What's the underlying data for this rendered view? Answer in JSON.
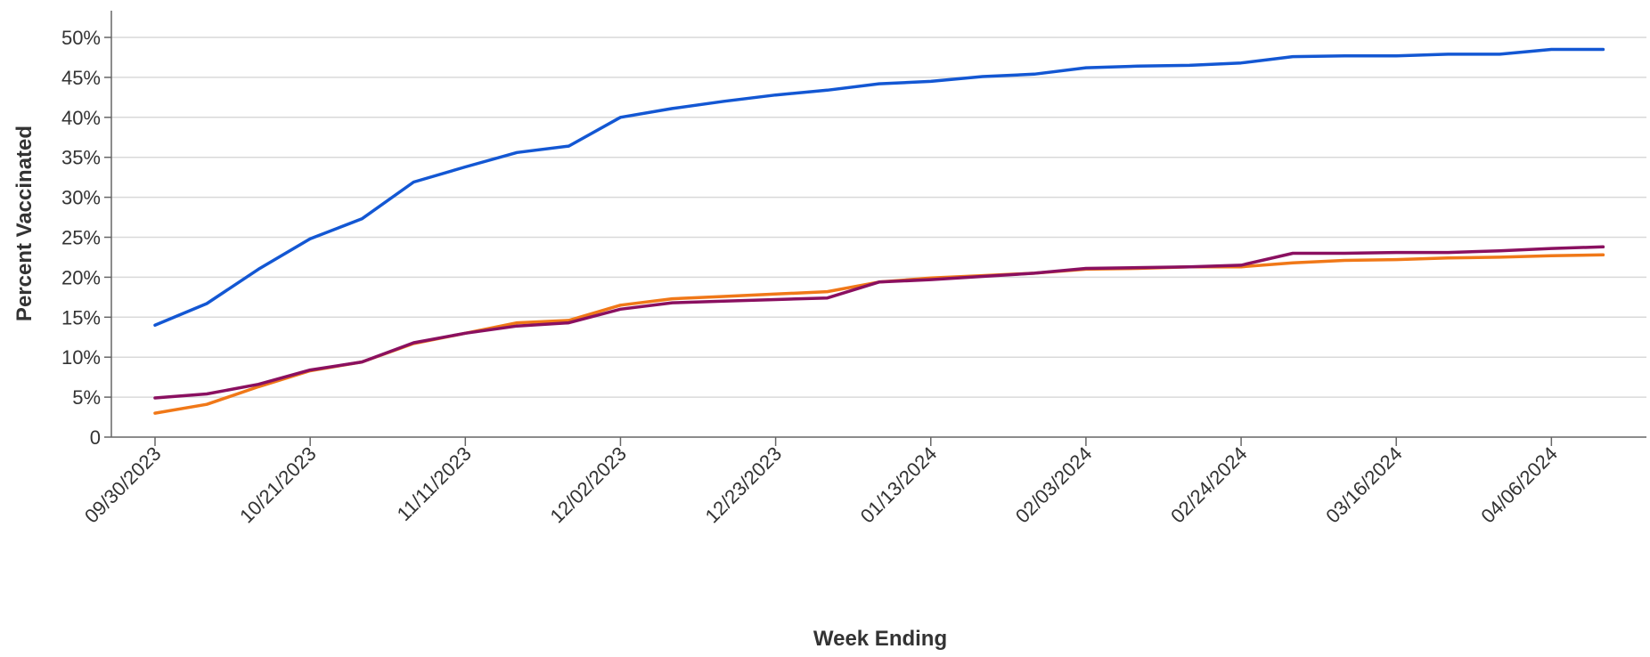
{
  "chart_data": {
    "type": "line",
    "title": "",
    "xlabel": "Week Ending",
    "ylabel": "Percent Vaccinated",
    "x": [
      "09/30/2023",
      "10/07/2023",
      "10/14/2023",
      "10/21/2023",
      "10/28/2023",
      "11/04/2023",
      "11/11/2023",
      "11/18/2023",
      "11/25/2023",
      "12/02/2023",
      "12/09/2023",
      "12/16/2023",
      "12/23/2023",
      "12/30/2023",
      "01/06/2024",
      "01/13/2024",
      "01/20/2024",
      "01/27/2024",
      "02/03/2024",
      "02/10/2024",
      "02/17/2024",
      "02/24/2024",
      "03/02/2024",
      "03/09/2024",
      "03/16/2024",
      "03/23/2024",
      "03/30/2024",
      "04/06/2024",
      "04/13/2024"
    ],
    "x_tick_labels": [
      "09/30/2023",
      "10/21/2023",
      "11/11/2023",
      "12/02/2023",
      "12/23/2023",
      "01/13/2024",
      "02/03/2024",
      "02/24/2024",
      "03/16/2024",
      "04/06/2024"
    ],
    "y_tick_labels": [
      "0",
      "5%",
      "10%",
      "15%",
      "20%",
      "25%",
      "30%",
      "35%",
      "40%",
      "45%",
      "50%"
    ],
    "ylim": [
      0,
      53
    ],
    "grid": true,
    "legend": "none",
    "series": [
      {
        "color": "#1357d3",
        "values": [
          14.0,
          16.7,
          21.0,
          24.8,
          27.3,
          31.9,
          33.8,
          35.6,
          36.4,
          40.0,
          41.1,
          42.0,
          42.8,
          43.4,
          44.2,
          44.5,
          45.1,
          45.4,
          46.2,
          46.4,
          46.5,
          46.8,
          47.6,
          47.7,
          47.7,
          47.9,
          47.9,
          48.5,
          48.5
        ]
      },
      {
        "color": "#f07818",
        "values": [
          3.0,
          4.1,
          6.3,
          8.3,
          9.4,
          11.7,
          13.0,
          14.3,
          14.6,
          16.5,
          17.3,
          17.6,
          17.9,
          18.2,
          19.4,
          19.9,
          20.2,
          20.5,
          21.0,
          21.1,
          21.3,
          21.3,
          21.8,
          22.1,
          22.2,
          22.4,
          22.5,
          22.7,
          22.8
        ]
      },
      {
        "color": "#8a1060",
        "values": [
          4.9,
          5.4,
          6.6,
          8.4,
          9.4,
          11.8,
          13.0,
          13.9,
          14.3,
          16.0,
          16.8,
          17.0,
          17.2,
          17.4,
          19.4,
          19.7,
          20.1,
          20.5,
          21.1,
          21.2,
          21.3,
          21.5,
          23.0,
          23.0,
          23.1,
          23.1,
          23.3,
          23.6,
          23.8
        ]
      }
    ]
  }
}
